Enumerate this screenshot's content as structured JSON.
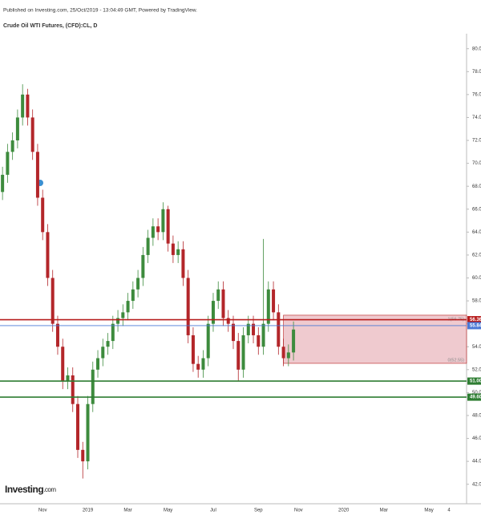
{
  "header": {
    "published": "Published on Investing.com, 25/Oct/2019 - 13:04:49 GMT, Powered by TradingView."
  },
  "logo": {
    "name": "Investing",
    "suffix": ".com"
  },
  "chart_data": {
    "type": "candlestick",
    "title": "Crude Oil WTI Futures, (CFD):CL, D",
    "categories": [
      null,
      null,
      null,
      null,
      null,
      null,
      null,
      null,
      "Nov",
      null,
      null,
      null,
      null,
      null,
      null,
      null,
      null,
      "2019",
      null,
      null,
      null,
      null,
      null,
      null,
      null,
      "Mar",
      null,
      null,
      null,
      null,
      null,
      null,
      null,
      "May",
      null,
      null,
      null,
      null,
      null,
      null,
      null,
      null,
      "Jul",
      null,
      null,
      null,
      null,
      null,
      null,
      null,
      null,
      "Sep",
      null,
      null,
      null,
      null,
      null,
      null,
      null,
      "Nov",
      null,
      null,
      null,
      null,
      null,
      null,
      null,
      null,
      "2020",
      null,
      null,
      null,
      null,
      null,
      null,
      null,
      "Mar",
      null,
      null,
      null,
      null,
      null,
      null,
      null,
      null,
      "May",
      null,
      null,
      null,
      "4",
      null,
      null,
      null
    ],
    "open": [
      67.5,
      69,
      71,
      72,
      74,
      76,
      74,
      71,
      67,
      64,
      60,
      56,
      54,
      51,
      51.5,
      49,
      45,
      44,
      49,
      52,
      53,
      54,
      54.5,
      56,
      56.5,
      57,
      58,
      59,
      60,
      62,
      63.5,
      64.5,
      64,
      66,
      63,
      62,
      62.5,
      60,
      55,
      52.5,
      52,
      53,
      56,
      58,
      59,
      56.5,
      56,
      54.5,
      52,
      55,
      56,
      55,
      54,
      56,
      59,
      57,
      54,
      53,
      53.5,
      null,
      null,
      null,
      null,
      null,
      null,
      null,
      null,
      null,
      null,
      null,
      null,
      null,
      null,
      null,
      null,
      null,
      null,
      null,
      null,
      null,
      null,
      null,
      null,
      null,
      null,
      null,
      null,
      null,
      null,
      null,
      null,
      null,
      null
    ],
    "high": [
      69.7,
      71.7,
      72.7,
      74.7,
      76.9,
      76.5,
      74.7,
      71.7,
      67.7,
      64.7,
      60.7,
      56.7,
      54.7,
      52.2,
      52.2,
      49.7,
      45.7,
      49.7,
      52.7,
      53.7,
      54.7,
      55.2,
      56.7,
      57.2,
      57.7,
      58.7,
      59.7,
      60.7,
      62.7,
      64.2,
      65.2,
      65.2,
      66.6,
      66.3,
      63.7,
      63.2,
      63.2,
      60.7,
      55.7,
      53.2,
      53.7,
      56.7,
      58.7,
      59.7,
      59.7,
      57.2,
      56.7,
      55.2,
      55.7,
      56.7,
      56.7,
      55.7,
      63.4,
      59.7,
      59.7,
      57.7,
      54.7,
      54.2,
      56.2,
      null,
      null,
      null,
      null,
      null,
      null,
      null,
      null,
      null,
      null,
      null,
      null,
      null,
      null,
      null,
      null,
      null,
      null,
      null,
      null,
      null,
      null,
      null,
      null,
      null,
      null,
      null,
      null,
      null,
      null,
      null,
      null,
      null,
      null
    ],
    "low": [
      66.8,
      68.3,
      70.3,
      71.3,
      73.3,
      73.3,
      70.3,
      66.3,
      63.3,
      59.3,
      55.3,
      53.3,
      50.3,
      50.3,
      48.3,
      44.3,
      42.5,
      43.3,
      48.3,
      51.3,
      52.3,
      53.3,
      53.8,
      55.3,
      55.8,
      56.3,
      57.3,
      58.3,
      59.3,
      61.3,
      62.8,
      63.3,
      63.3,
      62.3,
      61.3,
      61.3,
      59.3,
      54.3,
      51.8,
      51.3,
      51.3,
      52.3,
      55.3,
      57.3,
      55.8,
      55.3,
      53.8,
      51.0,
      51.3,
      54.3,
      54.3,
      53.3,
      53.3,
      55.3,
      56.3,
      53.3,
      52.3,
      52.3,
      52.8,
      null,
      null,
      null,
      null,
      null,
      null,
      null,
      null,
      null,
      null,
      null,
      null,
      null,
      null,
      null,
      null,
      null,
      null,
      null,
      null,
      null,
      null,
      null,
      null,
      null,
      null,
      null,
      null,
      null,
      null,
      null,
      null,
      null,
      null
    ],
    "close": [
      69,
      71,
      72,
      74,
      76,
      74,
      71,
      67,
      64,
      60,
      56,
      54,
      51,
      51.5,
      49,
      45,
      44,
      49,
      52,
      53,
      54,
      54.5,
      56,
      56.5,
      57,
      58,
      59,
      60,
      62,
      63.5,
      64.5,
      64,
      66,
      63,
      62,
      62.5,
      60,
      55,
      52.5,
      52,
      53,
      56,
      58,
      59,
      56.5,
      56,
      54.5,
      52,
      55,
      56,
      55,
      54,
      56,
      59,
      57,
      54,
      53,
      53.5,
      55.5,
      null,
      null,
      null,
      null,
      null,
      null,
      null,
      null,
      null,
      null,
      null,
      null,
      null,
      null,
      null,
      null,
      null,
      null,
      null,
      null,
      null,
      null,
      null,
      null,
      null,
      null,
      null,
      null,
      null,
      null,
      null,
      null,
      null,
      null
    ],
    "up_color": "#3d8b3d",
    "down_color": "#b3262a",
    "ylim": [
      40.3,
      81.1
    ],
    "yticks": [
      {
        "value": 42,
        "label": "42.00"
      },
      {
        "value": 44,
        "label": "44.00"
      },
      {
        "value": 46,
        "label": "46.00"
      },
      {
        "value": 48,
        "label": "48.00"
      },
      {
        "value": 50,
        "label": "50.00"
      },
      {
        "value": 52,
        "label": "52.00"
      },
      {
        "value": 54,
        "label": "54.00"
      },
      {
        "value": 56,
        "label": "56.00"
      },
      {
        "value": 58,
        "label": "58.00"
      },
      {
        "value": 60,
        "label": "60.00"
      },
      {
        "value": 62,
        "label": "62.00"
      },
      {
        "value": 64,
        "label": "64.00"
      },
      {
        "value": 66,
        "label": "66.00"
      },
      {
        "value": 68,
        "label": "68.00"
      },
      {
        "value": 70,
        "label": "70.00"
      },
      {
        "value": 72,
        "label": "72.00"
      },
      {
        "value": 74,
        "label": "74.00"
      },
      {
        "value": 76,
        "label": "76.00"
      },
      {
        "value": 78,
        "label": "78.00"
      },
      {
        "value": 80,
        "label": "80.00"
      }
    ],
    "grid": false,
    "zone": {
      "top": 56.75,
      "bottom": 52.55,
      "top_label": "1(56.75)",
      "bottom_label": "0(52.55)",
      "color": "#e8b4bb"
    },
    "levels": [
      {
        "value": 56.36,
        "label": "56.36",
        "color": "#b71c1c"
      },
      {
        "value": 55.84,
        "label": "55.84",
        "color": "#4a78d6"
      },
      {
        "value": 51,
        "label": "51.00",
        "color": "#2e7d32"
      },
      {
        "value": 49.6,
        "label": "49.60",
        "color": "#2e7d32"
      }
    ]
  }
}
